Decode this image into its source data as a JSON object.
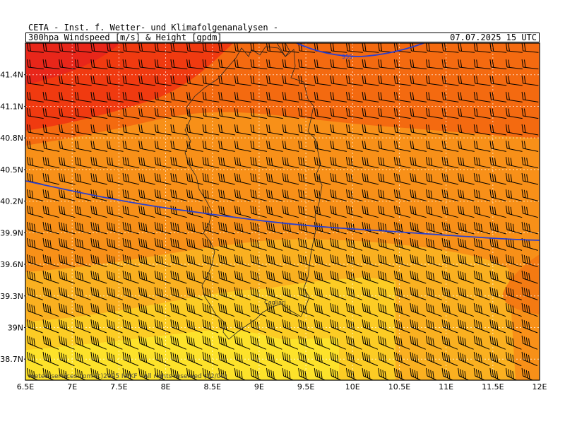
{
  "header": {
    "title": "CETA - Inst. f. Wetter- und Klimafolgenanalysen -",
    "product": "300hpa Windspeed [m/s] & Height [gpdm]",
    "valid_time": "07.07.2025 15 UTC"
  },
  "map": {
    "lon_range": [
      6.5,
      12
    ],
    "lat_range": [
      38.5,
      41.7
    ],
    "lat_labels": [
      {
        "lat": 41.4,
        "text": "41.4N"
      },
      {
        "lat": 41.1,
        "text": "41.1N"
      },
      {
        "lat": 40.8,
        "text": "40.8N"
      },
      {
        "lat": 40.5,
        "text": "40.5N"
      },
      {
        "lat": 40.2,
        "text": "40.2N"
      },
      {
        "lat": 39.9,
        "text": "39.9N"
      },
      {
        "lat": 39.6,
        "text": "39.6N"
      },
      {
        "lat": 39.3,
        "text": "39.3N"
      },
      {
        "lat": 39.0,
        "text": "39N"
      },
      {
        "lat": 38.7,
        "text": "38.7N"
      }
    ],
    "lon_labels": [
      {
        "lon": 6.5,
        "text": "6.5E"
      },
      {
        "lon": 7.0,
        "text": "7E"
      },
      {
        "lon": 7.5,
        "text": "7.5E"
      },
      {
        "lon": 8.0,
        "text": "8E"
      },
      {
        "lon": 8.5,
        "text": "8.5E"
      },
      {
        "lon": 9.0,
        "text": "9E"
      },
      {
        "lon": 9.5,
        "text": "9.5E"
      },
      {
        "lon": 10.0,
        "text": "10E"
      },
      {
        "lon": 10.5,
        "text": "10.5E"
      },
      {
        "lon": 11.0,
        "text": "11E"
      },
      {
        "lon": 11.5,
        "text": "11.5E"
      },
      {
        "lon": 12.0,
        "text": "12E"
      }
    ],
    "height_contours": [
      {
        "label": "955",
        "color": "#2a3fd0"
      },
      {
        "label": "",
        "color": "#2a3fd0"
      }
    ],
    "place_labels": [
      {
        "name": "Cagliari",
        "lon": 9.1,
        "lat": 39.22
      }
    ],
    "wind_colors": {
      "strongest": "#f03a10",
      "strong": "#f46a10",
      "moderate": "#f89018",
      "light": "#fab020",
      "weak": "#fccc24",
      "weakest": "#fde22a"
    }
  },
  "footer": {
    "credit": "meteo-services.com  (c)2025 IWKF - All rights reserved (12/00)"
  }
}
